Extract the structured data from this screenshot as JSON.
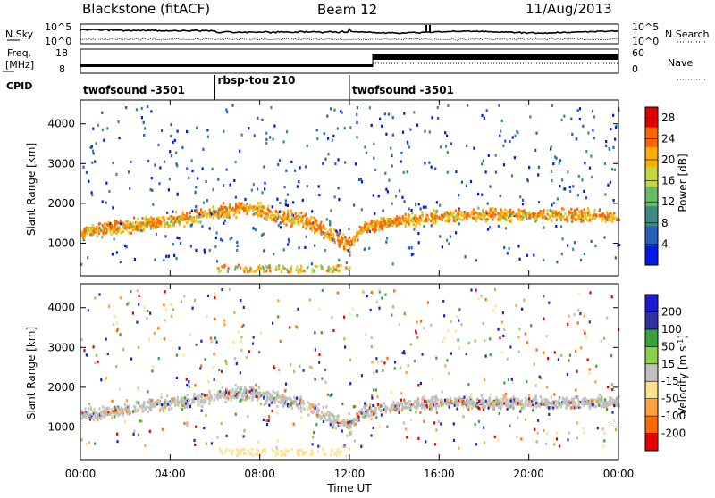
{
  "header": {
    "station": "Blackstone (fitACF)",
    "beam": "Beam 12",
    "date": "11/Aug/2013"
  },
  "top_panel": {
    "left_label": "N.Sky",
    "right_label": "N.Search",
    "left_ticks": [
      "10^5",
      "10^0"
    ],
    "right_ticks": [
      "10^5",
      "10^0"
    ]
  },
  "freq_panel": {
    "left_label_line1": "Freq.",
    "left_label_line2": "[MHz]",
    "left_ticks": [
      "18",
      "8"
    ],
    "right_label": "Nave",
    "right_ticks": [
      "60",
      "0"
    ]
  },
  "cpid": {
    "label": "CPID",
    "segments": [
      {
        "name": "twofsound -3501",
        "start_hour": 0,
        "end_hour": 6
      },
      {
        "name": "rbsp-tou 210",
        "start_hour": 6,
        "end_hour": 12
      },
      {
        "name": "twofsound -3501",
        "start_hour": 12,
        "end_hour": 24
      }
    ]
  },
  "chart_data": [
    {
      "type": "heatmap",
      "title": "",
      "ylabel": "Slant Range [km]",
      "xlabel": "",
      "xlim": [
        0,
        24
      ],
      "ylim": [
        180,
        4600
      ],
      "y_ticks": [
        1000,
        2000,
        3000,
        4000
      ],
      "colorbar": {
        "label": "Power [dB]",
        "ticks": [
          4,
          8,
          12,
          16,
          20,
          24,
          28
        ],
        "range": [
          0,
          30
        ],
        "colors": [
          "#0019e6",
          "#2a5fb8",
          "#3e8b86",
          "#69bc66",
          "#c6d63c",
          "#ffb000",
          "#ff6600",
          "#e60000"
        ]
      },
      "echo_band_center_km": [
        [
          0.0,
          1300
        ],
        [
          1.0,
          1380
        ],
        [
          2.0,
          1450
        ],
        [
          3.0,
          1520
        ],
        [
          4.0,
          1600
        ],
        [
          5.0,
          1680
        ],
        [
          6.0,
          1800
        ],
        [
          7.0,
          1900
        ],
        [
          8.0,
          1850
        ],
        [
          9.0,
          1700
        ],
        [
          10.0,
          1600
        ],
        [
          11.0,
          1300
        ],
        [
          12.0,
          1000
        ],
        [
          12.5,
          1400
        ],
        [
          14.0,
          1600
        ],
        [
          16.0,
          1700
        ],
        [
          18.0,
          1750
        ],
        [
          20.0,
          1750
        ],
        [
          22.0,
          1750
        ],
        [
          24.0,
          1700
        ]
      ]
    },
    {
      "type": "heatmap",
      "title": "",
      "ylabel": "Slant Range [km]",
      "xlabel": "Time UT",
      "xlim": [
        0,
        24
      ],
      "ylim": [
        180,
        4600
      ],
      "y_ticks": [
        1000,
        2000,
        3000,
        4000
      ],
      "x_ticks": [
        "00:00",
        "04:00",
        "08:00",
        "12:00",
        "16:00",
        "20:00",
        "00:00"
      ],
      "colorbar": {
        "label": "Velocity [m s",
        "label_sup": "-1",
        "label_end": "]",
        "ticks": [
          "-200",
          "-100",
          "-50",
          "-15",
          "15",
          "50",
          "100",
          "200"
        ],
        "colors": [
          "#e60000",
          "#ff6a00",
          "#ffa040",
          "#ffe08c",
          "#c0c0c0",
          "#8ccf4a",
          "#3aa33a",
          "#3030a0",
          "#1a1ad0"
        ]
      },
      "echo_band_center_km": [
        [
          0.0,
          1350
        ],
        [
          1.0,
          1400
        ],
        [
          2.0,
          1450
        ],
        [
          3.0,
          1550
        ],
        [
          4.0,
          1650
        ],
        [
          5.0,
          1700
        ],
        [
          6.0,
          1800
        ],
        [
          7.0,
          1900
        ],
        [
          8.0,
          1850
        ],
        [
          9.0,
          1700
        ],
        [
          10.0,
          1600
        ],
        [
          11.0,
          1300
        ],
        [
          12.0,
          1000
        ],
        [
          12.5,
          1400
        ],
        [
          14.0,
          1550
        ],
        [
          16.0,
          1650
        ],
        [
          18.0,
          1650
        ],
        [
          20.0,
          1650
        ],
        [
          22.0,
          1650
        ],
        [
          24.0,
          1650
        ]
      ]
    }
  ]
}
